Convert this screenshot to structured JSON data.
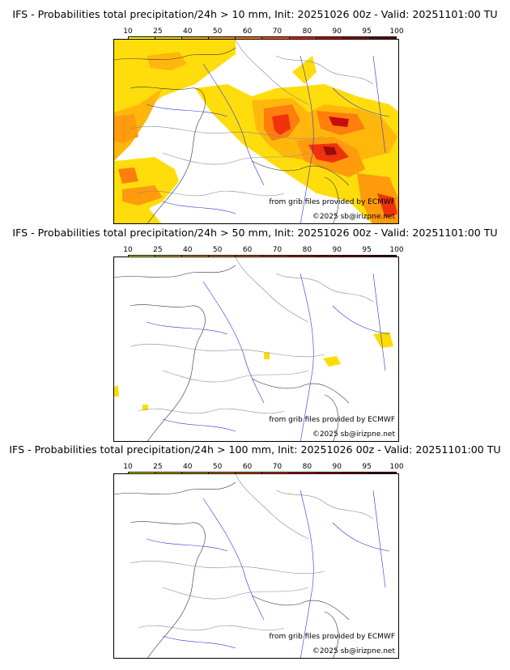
{
  "colorbar": {
    "labels": [
      "10",
      "25",
      "40",
      "50",
      "60",
      "70",
      "80",
      "90",
      "95",
      "100"
    ],
    "colors": [
      "#ffff00",
      "#ffdc00",
      "#ffb400",
      "#ff9600",
      "#ff7800",
      "#ff5000",
      "#f02800",
      "#c80000",
      "#960000",
      "#640000"
    ]
  },
  "credits": {
    "source": "from grib files provided by ECMWF",
    "copyright": "©2025 sb@irizpne.net"
  },
  "panels": [
    {
      "title": "IFS - Probabilities total precipitation/24h > 10 mm, Init: 20251026 00z - Valid: 20251101:00 TU",
      "threshold_mm": 10
    },
    {
      "title": "IFS - Probabilities total precipitation/24h > 50 mm, Init: 20251026 00z - Valid: 20251101:00 TU",
      "threshold_mm": 50
    },
    {
      "title": "IFS - Probabilities total precipitation/24h > 100 mm, Init: 20251026 00z - Valid: 20251101:00 TU",
      "threshold_mm": 100
    }
  ]
}
